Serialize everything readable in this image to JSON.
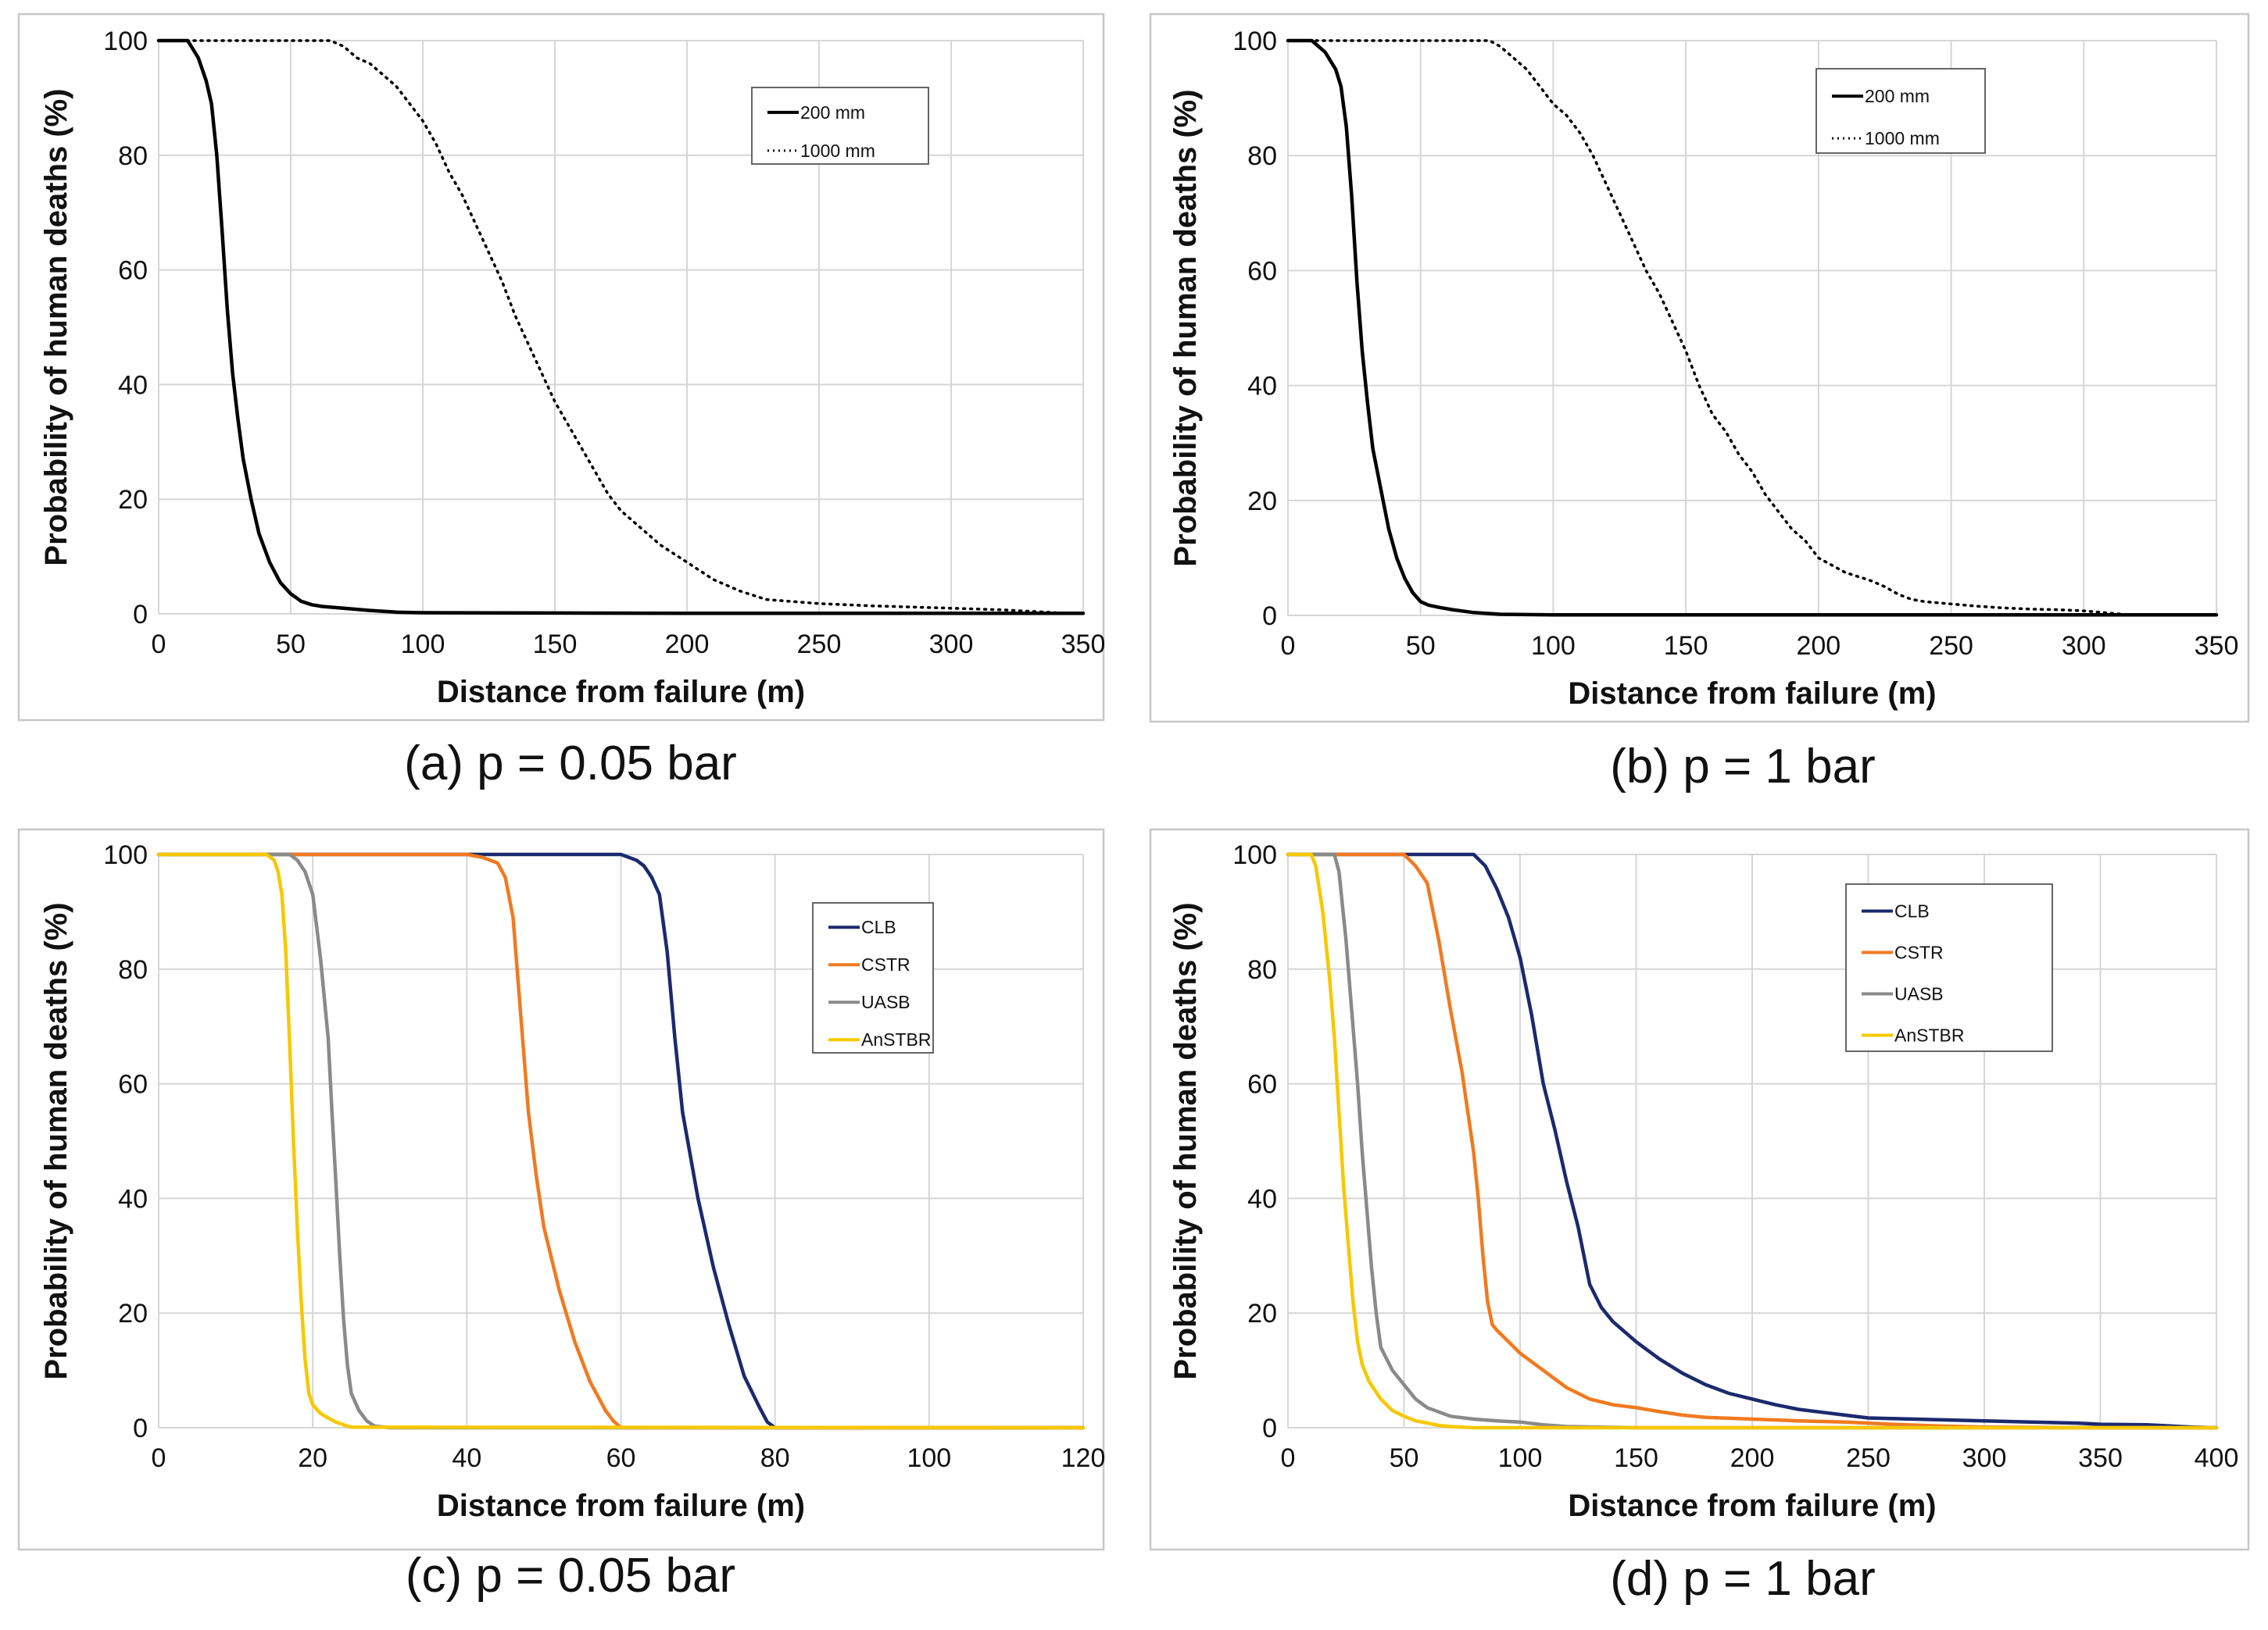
{
  "chart_data": [
    {
      "type": "line",
      "caption": "(a) p = 0.05 bar",
      "xlabel": "Distance from failure (m)",
      "ylabel": "Probability of human deaths (%)",
      "xlim": [
        0,
        350
      ],
      "ylim": [
        0,
        100
      ],
      "xticks": [
        "0",
        "50",
        "100",
        "150",
        "200",
        "250",
        "300",
        "350"
      ],
      "yticks": [
        "0",
        "20",
        "40",
        "60",
        "80",
        "100"
      ],
      "xtick_values": [
        0,
        50,
        100,
        150,
        200,
        250,
        300,
        350
      ],
      "ytick_values": [
        0,
        20,
        40,
        60,
        80,
        100
      ],
      "legend_position": "top-right",
      "series": [
        {
          "name": "200 mm",
          "color": "#000000",
          "style": "solid",
          "x": [
            0,
            11,
            15,
            18,
            20,
            22,
            24,
            26,
            28,
            30,
            32,
            35,
            38,
            42,
            46,
            50,
            54,
            58,
            62,
            70,
            80,
            90,
            100,
            150,
            200,
            250,
            300,
            350
          ],
          "y": [
            100,
            100,
            97,
            93,
            89,
            80,
            67,
            53,
            42,
            34,
            27,
            20,
            14,
            9,
            5.5,
            3.5,
            2.2,
            1.6,
            1.3,
            1.0,
            0.6,
            0.3,
            0.2,
            0.15,
            0.1,
            0.1,
            0.1,
            0.1
          ]
        },
        {
          "name": "1000 mm",
          "color": "#000000",
          "style": "dotted",
          "x": [
            0,
            60,
            65,
            70,
            75,
            80,
            85,
            90,
            95,
            100,
            105,
            110,
            115,
            120,
            125,
            130,
            135,
            140,
            145,
            150,
            155,
            160,
            165,
            170,
            175,
            180,
            190,
            200,
            210,
            220,
            230,
            250,
            270,
            300,
            320,
            340,
            350
          ],
          "y": [
            100,
            100,
            100,
            99,
            97,
            96,
            94,
            92,
            89,
            86,
            82,
            77,
            73,
            68,
            63,
            58,
            52,
            47,
            42,
            37,
            33,
            29,
            25,
            21,
            18,
            16,
            12,
            9,
            6,
            4,
            2.5,
            1.8,
            1.4,
            1.0,
            0.7,
            0.2,
            0.1
          ]
        }
      ]
    },
    {
      "type": "line",
      "caption": "(b) p = 1 bar",
      "xlabel": "Distance from failure (m)",
      "ylabel": "Probability of human deaths (%)",
      "xlim": [
        0,
        350
      ],
      "ylim": [
        0,
        100
      ],
      "xticks": [
        "0",
        "50",
        "100",
        "150",
        "200",
        "250",
        "300",
        "350"
      ],
      "yticks": [
        "0",
        "20",
        "40",
        "60",
        "80",
        "100"
      ],
      "xtick_values": [
        0,
        50,
        100,
        150,
        200,
        250,
        300,
        350
      ],
      "ytick_values": [
        0,
        20,
        40,
        60,
        80,
        100
      ],
      "legend_position": "top-right",
      "series": [
        {
          "name": "200 mm",
          "color": "#000000",
          "style": "solid",
          "x": [
            0,
            9,
            14,
            18,
            20,
            22,
            24,
            26,
            28,
            30,
            32,
            35,
            38,
            41,
            44,
            47,
            50,
            53,
            57,
            62,
            70,
            80,
            100,
            150,
            200,
            250,
            300,
            350
          ],
          "y": [
            100,
            100,
            98,
            95,
            92,
            85,
            73,
            58,
            46,
            37,
            29,
            22,
            15,
            10,
            6.5,
            4,
            2.4,
            1.8,
            1.4,
            1.0,
            0.5,
            0.2,
            0.1,
            0.1,
            0.1,
            0.1,
            0.1,
            0.1
          ]
        },
        {
          "name": "1000 mm",
          "color": "#000000",
          "style": "dotted",
          "x": [
            0,
            70,
            76,
            80,
            85,
            90,
            95,
            100,
            105,
            110,
            115,
            120,
            125,
            130,
            135,
            140,
            145,
            150,
            155,
            160,
            165,
            170,
            175,
            180,
            185,
            190,
            195,
            200,
            210,
            220,
            225,
            230,
            235,
            240,
            250,
            260,
            270,
            280,
            290,
            300,
            305,
            310,
            315,
            320,
            350
          ],
          "y": [
            100,
            100,
            100,
            99,
            97,
            95,
            92,
            89,
            87,
            84,
            80,
            75,
            70,
            65,
            60,
            56,
            51,
            46,
            40,
            35,
            32,
            28,
            25,
            21,
            18,
            15,
            13,
            10,
            7.5,
            6,
            5,
            3.7,
            2.8,
            2.4,
            2.0,
            1.6,
            1.3,
            1.1,
            1.0,
            0.8,
            0.6,
            0.4,
            0.2,
            0.1,
            0.1
          ]
        }
      ]
    },
    {
      "type": "line",
      "caption": "(c) p = 0.05 bar",
      "xlabel": "Distance from failure (m)",
      "ylabel": "Probability of human deaths (%)",
      "xlim": [
        0,
        120
      ],
      "ylim": [
        0,
        100
      ],
      "xticks": [
        "0",
        "20",
        "40",
        "60",
        "80",
        "100",
        "120"
      ],
      "yticks": [
        "0",
        "20",
        "40",
        "60",
        "80",
        "100"
      ],
      "xtick_values": [
        0,
        20,
        40,
        60,
        80,
        100,
        120
      ],
      "ytick_values": [
        0,
        20,
        40,
        60,
        80,
        100
      ],
      "legend_position": "top-right",
      "series": [
        {
          "name": "CLB",
          "color": "#1b2a6e",
          "style": "solid",
          "x": [
            0,
            60,
            62,
            63,
            64,
            65,
            66,
            67,
            68,
            70,
            72,
            74,
            76,
            78,
            79,
            80,
            85,
            120
          ],
          "y": [
            100,
            100,
            99,
            98,
            96,
            93,
            83,
            68,
            55,
            40,
            28,
            18,
            9,
            3.5,
            1,
            0,
            0,
            0
          ]
        },
        {
          "name": "CSTR",
          "color": "#f07a20",
          "style": "solid",
          "x": [
            0,
            40,
            42,
            44,
            45,
            46,
            47,
            48,
            49,
            50,
            52,
            54,
            56,
            58,
            59,
            60,
            65,
            120
          ],
          "y": [
            100,
            100,
            99.5,
            98.5,
            96,
            89,
            72,
            55,
            44,
            35,
            24,
            15,
            8,
            3,
            1.2,
            0,
            0,
            0
          ]
        },
        {
          "name": "UASB",
          "color": "#8a8a8a",
          "style": "solid",
          "x": [
            0,
            17,
            18,
            19,
            20,
            21,
            22,
            22.5,
            23,
            23.5,
            24,
            24.5,
            25,
            26,
            27,
            28,
            30,
            120
          ],
          "y": [
            100,
            100,
            99,
            97,
            93,
            82,
            68,
            55,
            43,
            30,
            19,
            11,
            6,
            3,
            1.2,
            0.3,
            0,
            0
          ]
        },
        {
          "name": "AnSTBR",
          "color": "#f7c800",
          "style": "solid",
          "x": [
            0,
            14,
            15,
            15.5,
            16,
            16.5,
            17,
            17.5,
            18,
            18.5,
            19,
            19.5,
            20,
            21,
            22,
            23,
            24,
            25,
            120
          ],
          "y": [
            100,
            100,
            99,
            97,
            93,
            83,
            67,
            50,
            35,
            22,
            12,
            6,
            4,
            2.5,
            1.7,
            1.0,
            0.5,
            0.1,
            0
          ]
        }
      ]
    },
    {
      "type": "line",
      "caption": "(d) p = 1 bar",
      "xlabel": "Distance from failure (m)",
      "ylabel": "Probability of human deaths (%)",
      "xlim": [
        0,
        400
      ],
      "ylim": [
        0,
        100
      ],
      "xticks": [
        "0",
        "50",
        "100",
        "150",
        "200",
        "250",
        "300",
        "350",
        "400"
      ],
      "yticks": [
        "0",
        "20",
        "40",
        "60",
        "80",
        "100"
      ],
      "xtick_values": [
        0,
        50,
        100,
        150,
        200,
        250,
        300,
        350,
        400
      ],
      "ytick_values": [
        0,
        20,
        40,
        60,
        80,
        100
      ],
      "legend_position": "top-right",
      "series": [
        {
          "name": "CLB",
          "color": "#1b2a6e",
          "style": "solid",
          "x": [
            0,
            80,
            85,
            90,
            95,
            100,
            105,
            110,
            115,
            120,
            125,
            130,
            135,
            140,
            150,
            160,
            170,
            180,
            190,
            200,
            210,
            220,
            230,
            240,
            250,
            260,
            280,
            300,
            320,
            340,
            350,
            370,
            380,
            390,
            400
          ],
          "y": [
            100,
            100,
            98,
            94,
            89,
            82,
            72,
            60,
            52,
            43,
            35,
            25,
            21,
            18.5,
            15,
            12,
            9.5,
            7.5,
            6,
            5,
            4,
            3.2,
            2.7,
            2.2,
            1.7,
            1.6,
            1.4,
            1.2,
            1.0,
            0.8,
            0.6,
            0.5,
            0.3,
            0.1,
            0
          ]
        },
        {
          "name": "CSTR",
          "color": "#f07a20",
          "style": "solid",
          "x": [
            0,
            50,
            55,
            60,
            65,
            70,
            75,
            80,
            82,
            84,
            86,
            88,
            90,
            95,
            100,
            110,
            120,
            130,
            140,
            150,
            160,
            170,
            180,
            200,
            220,
            240,
            260,
            280,
            300,
            350,
            400
          ],
          "y": [
            100,
            100,
            98,
            95,
            85,
            73,
            62,
            48,
            40,
            30,
            22,
            18,
            17,
            15,
            13,
            10,
            7,
            5,
            4,
            3.5,
            2.8,
            2.2,
            1.8,
            1.5,
            1.2,
            1.0,
            0.6,
            0.3,
            0.1,
            0,
            0
          ]
        },
        {
          "name": "UASB",
          "color": "#8a8a8a",
          "style": "solid",
          "x": [
            0,
            20,
            22,
            25,
            28,
            30,
            32,
            34,
            36,
            38,
            40,
            45,
            50,
            55,
            60,
            70,
            80,
            90,
            100,
            110,
            120,
            150,
            200,
            400
          ],
          "y": [
            100,
            100,
            97,
            85,
            70,
            60,
            48,
            38,
            28,
            20,
            14,
            10,
            7.5,
            5,
            3.5,
            2,
            1.5,
            1.2,
            1,
            0.5,
            0.2,
            0,
            0,
            0
          ]
        },
        {
          "name": "AnSTBR",
          "color": "#f7c800",
          "style": "solid",
          "x": [
            0,
            10,
            12,
            15,
            18,
            20,
            22,
            24,
            26,
            28,
            30,
            32,
            35,
            40,
            45,
            50,
            55,
            60,
            65,
            70,
            80,
            100,
            400
          ],
          "y": [
            100,
            100,
            98,
            90,
            78,
            68,
            55,
            42,
            32,
            22,
            15,
            11,
            8,
            5,
            3,
            2,
            1.2,
            0.8,
            0.4,
            0.2,
            0,
            0,
            0
          ]
        }
      ]
    }
  ]
}
